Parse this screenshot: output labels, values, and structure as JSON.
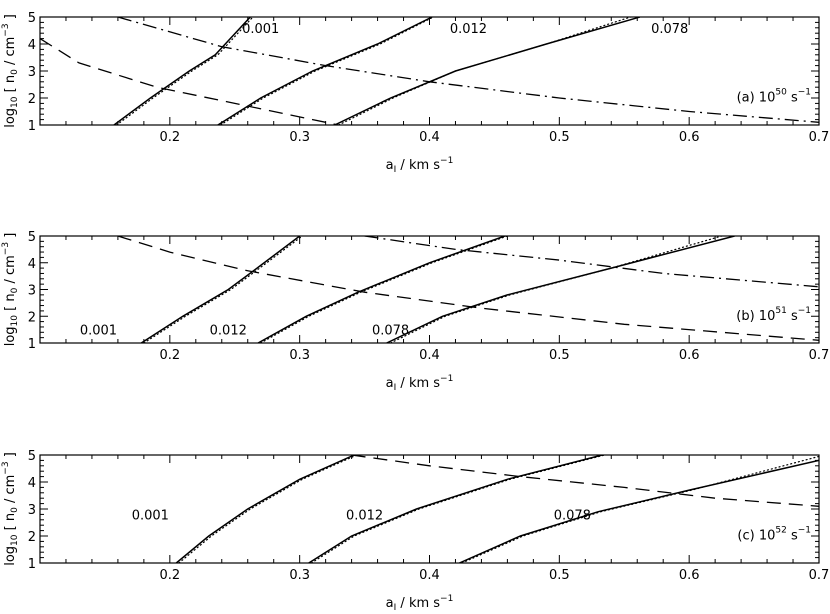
{
  "chart_data": [
    {
      "type": "line",
      "panel_label": "(a) 10",
      "panel_label_sup": "50",
      "panel_label_suffix": " s",
      "panel_label_suffix_sup": "−1",
      "xlabel": "a",
      "xlabel_sub": "I",
      "xlabel_suffix": " / km s",
      "xlabel_suffix_sup": "−1",
      "ylabel": "log",
      "ylabel_sub": "10",
      "ylabel_mid": " [ n",
      "ylabel_sub2": "0",
      "ylabel_suffix": " / cm",
      "ylabel_suffix_sup": "−3",
      "ylabel_end": " ]",
      "xlim": [
        0.1,
        0.7
      ],
      "ylim": [
        1,
        5
      ],
      "xticks": [
        "0.2",
        "0.3",
        "0.4",
        "0.5",
        "0.6",
        "0.7"
      ],
      "yticks": [
        "1",
        "2",
        "3",
        "4",
        "5"
      ],
      "curve_labels": [
        {
          "text": "0.001",
          "x": 0.27,
          "y": 4.6
        },
        {
          "text": "0.012",
          "x": 0.43,
          "y": 4.6
        },
        {
          "text": "0.078",
          "x": 0.585,
          "y": 4.6
        }
      ],
      "series": [
        {
          "style": "solid",
          "x": [
            0.157,
            0.185,
            0.215,
            0.235,
            0.262
          ],
          "y": [
            1.0,
            2.0,
            3.0,
            3.6,
            5.0
          ]
        },
        {
          "style": "dotted",
          "x": [
            0.159,
            0.187,
            0.217,
            0.237,
            0.264
          ],
          "y": [
            1.0,
            2.0,
            3.0,
            3.6,
            5.0
          ]
        },
        {
          "style": "solid",
          "x": [
            0.237,
            0.27,
            0.31,
            0.36,
            0.402
          ],
          "y": [
            1.0,
            2.0,
            3.0,
            4.0,
            5.0
          ]
        },
        {
          "style": "dotted",
          "x": [
            0.239,
            0.272,
            0.312,
            0.362,
            0.403
          ],
          "y": [
            1.0,
            2.0,
            3.0,
            4.0,
            5.0
          ]
        },
        {
          "style": "solid",
          "x": [
            0.327,
            0.37,
            0.42,
            0.49,
            0.562
          ],
          "y": [
            1.0,
            2.0,
            3.0,
            4.0,
            5.0
          ]
        },
        {
          "style": "dotted",
          "x": [
            0.33,
            0.372,
            0.42,
            0.49,
            0.555
          ],
          "y": [
            1.0,
            2.0,
            3.0,
            4.0,
            5.0
          ]
        },
        {
          "style": "dashed",
          "x": [
            0.1,
            0.13,
            0.19,
            0.25,
            0.33
          ],
          "y": [
            4.2,
            3.3,
            2.4,
            1.8,
            1.0
          ]
        },
        {
          "style": "dashdot",
          "x": [
            0.16,
            0.24,
            0.32,
            0.4,
            0.5,
            0.6,
            0.7
          ],
          "y": [
            5.0,
            3.9,
            3.2,
            2.6,
            2.0,
            1.5,
            1.1
          ]
        }
      ]
    },
    {
      "type": "line",
      "panel_label": "(b) 10",
      "panel_label_sup": "51",
      "panel_label_suffix": " s",
      "panel_label_suffix_sup": "−1",
      "xlabel": "a",
      "xlabel_sub": "I",
      "xlabel_suffix": " / km s",
      "xlabel_suffix_sup": "−1",
      "ylabel": "log",
      "ylabel_sub": "10",
      "ylabel_mid": " [ n",
      "ylabel_sub2": "0",
      "ylabel_suffix": " / cm",
      "ylabel_suffix_sup": "−3",
      "ylabel_end": " ]",
      "xlim": [
        0.1,
        0.7
      ],
      "ylim": [
        1,
        5
      ],
      "xticks": [
        "0.2",
        "0.3",
        "0.4",
        "0.5",
        "0.6",
        "0.7"
      ],
      "yticks": [
        "1",
        "2",
        "3",
        "4",
        "5"
      ],
      "curve_labels": [
        {
          "text": "0.001",
          "x": 0.145,
          "y": 1.5
        },
        {
          "text": "0.012",
          "x": 0.245,
          "y": 1.5
        },
        {
          "text": "0.078",
          "x": 0.37,
          "y": 1.5
        }
      ],
      "series": [
        {
          "style": "solid",
          "x": [
            0.178,
            0.21,
            0.245,
            0.27,
            0.3
          ],
          "y": [
            1.0,
            2.0,
            3.0,
            3.9,
            5.0
          ]
        },
        {
          "style": "dotted",
          "x": [
            0.18,
            0.212,
            0.247,
            0.272,
            0.302
          ],
          "y": [
            1.0,
            2.0,
            3.0,
            3.9,
            5.0
          ]
        },
        {
          "style": "solid",
          "x": [
            0.268,
            0.305,
            0.345,
            0.4,
            0.458
          ],
          "y": [
            1.0,
            2.0,
            2.9,
            4.0,
            5.0
          ]
        },
        {
          "style": "dotted",
          "x": [
            0.27,
            0.307,
            0.347,
            0.402,
            0.46
          ],
          "y": [
            1.0,
            2.0,
            2.9,
            4.0,
            5.0
          ]
        },
        {
          "style": "solid",
          "x": [
            0.367,
            0.41,
            0.46,
            0.54,
            0.635
          ],
          "y": [
            1.0,
            2.0,
            2.8,
            3.8,
            5.0
          ]
        },
        {
          "style": "dotted",
          "x": [
            0.37,
            0.412,
            0.462,
            0.54,
            0.625
          ],
          "y": [
            1.0,
            2.0,
            2.8,
            3.8,
            5.0
          ]
        },
        {
          "style": "dashed",
          "x": [
            0.16,
            0.2,
            0.26,
            0.35,
            0.44,
            0.55,
            0.7
          ],
          "y": [
            5.0,
            4.4,
            3.7,
            2.9,
            2.3,
            1.7,
            1.1
          ]
        },
        {
          "style": "dashdot",
          "x": [
            0.35,
            0.42,
            0.5,
            0.58,
            0.7
          ],
          "y": [
            5.0,
            4.5,
            4.1,
            3.6,
            3.1
          ]
        }
      ]
    },
    {
      "type": "line",
      "panel_label": "(c) 10",
      "panel_label_sup": "52",
      "panel_label_suffix": " s",
      "panel_label_suffix_sup": "−1",
      "xlabel": "a",
      "xlabel_sub": "I",
      "xlabel_suffix": " / km s",
      "xlabel_suffix_sup": "−1",
      "ylabel": "log",
      "ylabel_sub": "10",
      "ylabel_mid": " [ n",
      "ylabel_sub2": "0",
      "ylabel_suffix": " / cm",
      "ylabel_suffix_sup": "−3",
      "ylabel_end": " ]",
      "xlim": [
        0.1,
        0.7
      ],
      "ylim": [
        1,
        5
      ],
      "xticks": [
        "0.2",
        "0.3",
        "0.4",
        "0.5",
        "0.6",
        "0.7"
      ],
      "yticks": [
        "1",
        "2",
        "3",
        "4",
        "5"
      ],
      "curve_labels": [
        {
          "text": "0.001",
          "x": 0.185,
          "y": 2.8
        },
        {
          "text": "0.012",
          "x": 0.35,
          "y": 2.8
        },
        {
          "text": "0.078",
          "x": 0.51,
          "y": 2.8
        }
      ],
      "series": [
        {
          "style": "solid",
          "x": [
            0.205,
            0.23,
            0.26,
            0.3,
            0.342
          ],
          "y": [
            1.0,
            2.0,
            3.0,
            4.1,
            5.0
          ]
        },
        {
          "style": "dotted",
          "x": [
            0.207,
            0.232,
            0.262,
            0.302,
            0.344
          ],
          "y": [
            1.0,
            2.0,
            3.0,
            4.1,
            5.0
          ]
        },
        {
          "style": "solid",
          "x": [
            0.307,
            0.34,
            0.39,
            0.46,
            0.533
          ],
          "y": [
            1.0,
            2.0,
            3.0,
            4.1,
            5.0
          ]
        },
        {
          "style": "dotted",
          "x": [
            0.309,
            0.342,
            0.392,
            0.462,
            0.535
          ],
          "y": [
            1.0,
            2.0,
            3.0,
            4.1,
            5.0
          ]
        },
        {
          "style": "solid",
          "x": [
            0.423,
            0.47,
            0.53,
            0.6,
            0.7
          ],
          "y": [
            1.0,
            2.0,
            2.9,
            3.7,
            4.8
          ]
        },
        {
          "style": "dotted",
          "x": [
            0.425,
            0.472,
            0.532,
            0.602,
            0.7
          ],
          "y": [
            1.0,
            2.0,
            2.9,
            3.7,
            4.95
          ]
        },
        {
          "style": "dashed",
          "x": [
            0.34,
            0.4,
            0.47,
            0.55,
            0.62,
            0.7
          ],
          "y": [
            5.0,
            4.6,
            4.2,
            3.8,
            3.4,
            3.1
          ]
        }
      ]
    }
  ]
}
